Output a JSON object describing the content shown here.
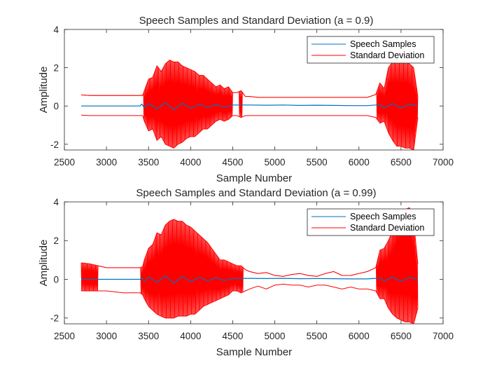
{
  "chart_data": [
    {
      "type": "line",
      "title": "Speech Samples and Standard Deviation (a = 0.9)",
      "xlabel": "Sample Number",
      "ylabel": "Amplitude",
      "xlim": [
        2500,
        7000
      ],
      "ylim": [
        -2.3,
        4
      ],
      "xticks": [
        2500,
        3000,
        3500,
        4000,
        4500,
        5000,
        5500,
        6000,
        6500,
        7000
      ],
      "yticks": [
        -2,
        0,
        2,
        4
      ],
      "legend_position": "top-right",
      "grid": false,
      "series": [
        {
          "name": "Speech Samples",
          "color": "#0072BD",
          "x": [
            2700,
            3000,
            3400,
            3420,
            3450,
            3500,
            3600,
            3700,
            3800,
            3900,
            4000,
            4100,
            4200,
            4300,
            4400,
            4500,
            4700,
            4900,
            5100,
            5300,
            5500,
            5700,
            5900,
            6100,
            6200,
            6250,
            6300,
            6400,
            6500,
            6600,
            6700
          ],
          "values": [
            0,
            0,
            0,
            0.1,
            -0.1,
            0.12,
            -0.15,
            0.18,
            -0.2,
            0.15,
            -0.12,
            0.1,
            -0.08,
            0.08,
            -0.06,
            0.05,
            0.05,
            0.04,
            0.05,
            0.03,
            0.04,
            0.03,
            0.02,
            0.02,
            0.05,
            0.08,
            -0.1,
            0.12,
            -0.1,
            0.1,
            0
          ]
        },
        {
          "name": "Standard Deviation",
          "color": "#FF0000",
          "upper_x": [
            2700,
            2800,
            3000,
            3200,
            3400,
            3430,
            3450,
            3500,
            3550,
            3600,
            3650,
            3700,
            3750,
            3800,
            3850,
            3900,
            3950,
            4000,
            4050,
            4100,
            4150,
            4200,
            4250,
            4300,
            4350,
            4400,
            4450,
            4500,
            4550,
            4600,
            4650,
            4700,
            4800,
            4900,
            5000,
            5100,
            5200,
            5300,
            5400,
            5500,
            5600,
            5700,
            5800,
            5900,
            6000,
            6100,
            6200,
            6250,
            6300,
            6350,
            6400,
            6450,
            6500,
            6550,
            6600,
            6650,
            6700
          ],
          "upper_values": [
            0.58,
            0.55,
            0.55,
            0.55,
            0.55,
            0.55,
            0.8,
            1.4,
            1.5,
            2.1,
            1.8,
            2.2,
            2.4,
            2.3,
            2.3,
            2.1,
            2.0,
            1.9,
            1.8,
            1.6,
            1.6,
            1.4,
            1.2,
            1.0,
            1.1,
            0.9,
            1.0,
            0.7,
            0.7,
            0.8,
            0.5,
            0.5,
            0.45,
            0.45,
            0.45,
            0.45,
            0.45,
            0.45,
            0.45,
            0.45,
            0.45,
            0.45,
            0.45,
            0.45,
            0.45,
            0.45,
            0.6,
            1.2,
            0.9,
            2.0,
            2.3,
            2.3,
            2.3,
            2.3,
            2.2,
            2.0,
            0.5
          ],
          "lower_values": [
            -0.48,
            -0.5,
            -0.5,
            -0.5,
            -0.5,
            -0.5,
            -0.8,
            -1.3,
            -1.2,
            -1.8,
            -1.6,
            -2.0,
            -2.1,
            -2.2,
            -2.0,
            -1.9,
            -1.7,
            -1.6,
            -1.6,
            -1.4,
            -1.2,
            -1.2,
            -1.0,
            -0.8,
            -0.7,
            -0.8,
            -0.7,
            -0.5,
            -0.5,
            -0.6,
            -0.5,
            -0.5,
            -0.5,
            -0.5,
            -0.5,
            -0.5,
            -0.5,
            -0.5,
            -0.5,
            -0.5,
            -0.5,
            -0.5,
            -0.5,
            -0.5,
            -0.5,
            -0.5,
            -0.6,
            -0.9,
            -0.8,
            -1.4,
            -1.8,
            -2.1,
            -2.1,
            -2.2,
            -2.2,
            -2.3,
            -0.6
          ]
        }
      ]
    },
    {
      "type": "line",
      "title": "Speech Samples and Standard Deviation (a = 0.99)",
      "xlabel": "Sample Number",
      "ylabel": "Amplitude",
      "xlim": [
        2500,
        7000
      ],
      "ylim": [
        -2.3,
        4
      ],
      "xticks": [
        2500,
        3000,
        3500,
        4000,
        4500,
        5000,
        5500,
        6000,
        6500,
        7000
      ],
      "yticks": [
        -2,
        0,
        2,
        4
      ],
      "legend_position": "top-right",
      "grid": false,
      "series": [
        {
          "name": "Speech Samples",
          "color": "#0072BD",
          "x": [
            2700,
            3000,
            3400,
            3420,
            3450,
            3500,
            3600,
            3700,
            3800,
            3900,
            4000,
            4100,
            4200,
            4300,
            4400,
            4500,
            4700,
            4900,
            5100,
            5300,
            5500,
            5700,
            5900,
            6100,
            6200,
            6250,
            6300,
            6400,
            6500,
            6600,
            6700
          ],
          "values": [
            0,
            0,
            0,
            0.1,
            -0.1,
            0.12,
            -0.15,
            0.18,
            -0.2,
            0.15,
            -0.12,
            0.1,
            -0.08,
            0.08,
            -0.06,
            0.05,
            0.05,
            0.04,
            0.05,
            0.03,
            0.04,
            0.03,
            0.02,
            0.02,
            0.05,
            0.08,
            -0.1,
            0.12,
            -0.1,
            0.1,
            0
          ]
        },
        {
          "name": "Standard Deviation",
          "color": "#FF0000",
          "upper_x": [
            2700,
            2800,
            3000,
            3200,
            3400,
            3430,
            3450,
            3500,
            3550,
            3600,
            3650,
            3700,
            3750,
            3800,
            3850,
            3900,
            3950,
            4000,
            4050,
            4100,
            4150,
            4200,
            4250,
            4300,
            4350,
            4400,
            4450,
            4500,
            4550,
            4600,
            4650,
            4700,
            4800,
            4900,
            5000,
            5100,
            5200,
            5300,
            5400,
            5500,
            5600,
            5700,
            5800,
            5900,
            6000,
            6100,
            6200,
            6250,
            6300,
            6350,
            6400,
            6450,
            6500,
            6550,
            6600,
            6650,
            6700
          ],
          "upper_values": [
            0.85,
            0.8,
            0.6,
            0.6,
            0.6,
            0.65,
            1.0,
            1.6,
            1.8,
            2.4,
            2.3,
            2.8,
            3.0,
            3.1,
            3.0,
            3.0,
            2.8,
            2.7,
            2.5,
            2.3,
            2.1,
            1.9,
            1.6,
            1.3,
            1.0,
            1.0,
            0.9,
            0.8,
            0.7,
            0.7,
            0.5,
            0.4,
            0.3,
            0.35,
            0.2,
            0.15,
            0.25,
            0.3,
            0.2,
            0.15,
            0.3,
            0.4,
            0.2,
            0.2,
            0.3,
            0.4,
            0.6,
            1.5,
            1.6,
            2.0,
            2.5,
            3.2,
            3.5,
            3.6,
            3.7,
            3.0,
            0.8
          ],
          "lower_values": [
            -0.6,
            -0.6,
            -0.6,
            -0.7,
            -0.7,
            -0.8,
            -1.0,
            -1.4,
            -1.6,
            -1.8,
            -1.9,
            -2.0,
            -2.0,
            -2.0,
            -1.9,
            -1.9,
            -1.9,
            -1.8,
            -1.8,
            -1.6,
            -1.4,
            -1.3,
            -1.2,
            -1.1,
            -1.0,
            -0.9,
            -0.8,
            -0.6,
            -0.6,
            -0.7,
            -0.6,
            -0.5,
            -0.35,
            -0.5,
            -0.3,
            -0.25,
            -0.3,
            -0.3,
            -0.4,
            -0.3,
            -0.3,
            -0.4,
            -0.5,
            -0.4,
            -0.5,
            -0.5,
            -0.6,
            -1.0,
            -1.0,
            -1.5,
            -1.8,
            -2.0,
            -2.1,
            -2.2,
            -2.2,
            -2.3,
            -1.5
          ]
        }
      ]
    }
  ]
}
